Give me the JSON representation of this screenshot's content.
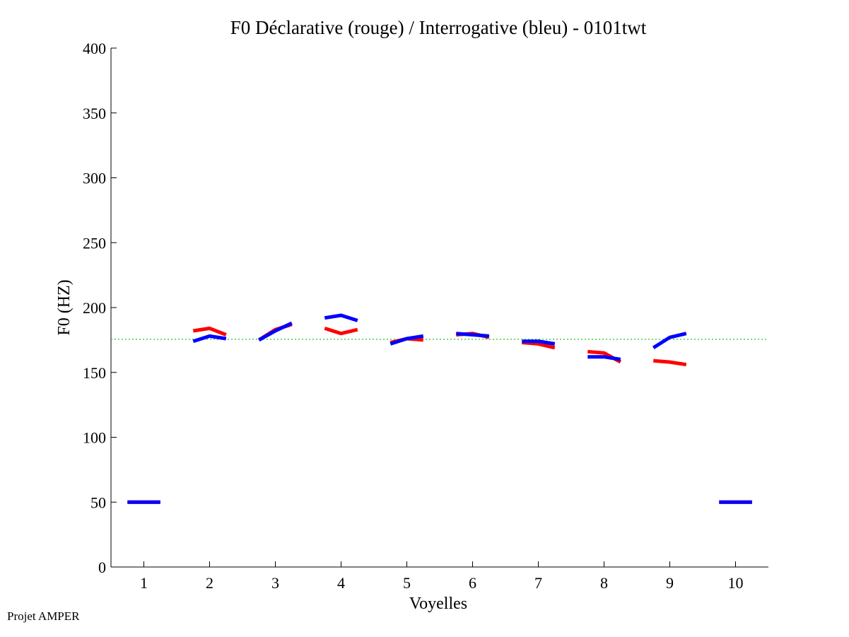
{
  "chart_data": {
    "type": "line",
    "title": "F0 Déclarative (rouge) / Interrogative (bleu) - 0101twt",
    "xlabel": "Voyelles",
    "ylabel": "F0 (HZ)",
    "xlim": [
      0.5,
      10.5
    ],
    "ylim": [
      0,
      400
    ],
    "xticks": [
      "1",
      "2",
      "3",
      "4",
      "5",
      "6",
      "7",
      "8",
      "9",
      "10"
    ],
    "yticks": [
      "0",
      "50",
      "100",
      "150",
      "200",
      "250",
      "300",
      "350",
      "400"
    ],
    "reference_line": {
      "y": 175.5,
      "style": "dotted",
      "color": "#33cc33"
    },
    "colors": {
      "declarative": "#ff0000",
      "interrogative": "#0000ff"
    },
    "series": [
      {
        "name": "Déclarative (rouge)",
        "segments": [
          {
            "vowel": 1,
            "values": [
              50,
              50,
              50
            ]
          },
          {
            "vowel": 2,
            "values": [
              182,
              184,
              179
            ]
          },
          {
            "vowel": 3,
            "values": [
              175,
              183,
              187
            ]
          },
          {
            "vowel": 4,
            "values": [
              184,
              180,
              183
            ]
          },
          {
            "vowel": 5,
            "values": [
              173,
              176,
              175
            ]
          },
          {
            "vowel": 6,
            "values": [
              179,
              180,
              177
            ]
          },
          {
            "vowel": 7,
            "values": [
              173,
              172,
              169
            ]
          },
          {
            "vowel": 8,
            "values": [
              166,
              165,
              158
            ]
          },
          {
            "vowel": 9,
            "values": [
              159,
              158,
              156
            ]
          },
          {
            "vowel": 10,
            "values": [
              50,
              50,
              50
            ]
          }
        ]
      },
      {
        "name": "Interrogative (bleu)",
        "segments": [
          {
            "vowel": 1,
            "values": [
              50,
              50,
              50
            ]
          },
          {
            "vowel": 2,
            "values": [
              174,
              178,
              176
            ]
          },
          {
            "vowel": 3,
            "values": [
              175,
              182,
              188
            ]
          },
          {
            "vowel": 4,
            "values": [
              192,
              194,
              190
            ]
          },
          {
            "vowel": 5,
            "values": [
              172,
              176,
              178
            ]
          },
          {
            "vowel": 6,
            "values": [
              180,
              179,
              178
            ]
          },
          {
            "vowel": 7,
            "values": [
              174,
              174,
              172
            ]
          },
          {
            "vowel": 8,
            "values": [
              162,
              162,
              160
            ]
          },
          {
            "vowel": 9,
            "values": [
              169,
              177,
              180
            ]
          },
          {
            "vowel": 10,
            "values": [
              50,
              50,
              50
            ]
          }
        ]
      }
    ]
  },
  "footer": {
    "label": "Projet AMPER"
  }
}
